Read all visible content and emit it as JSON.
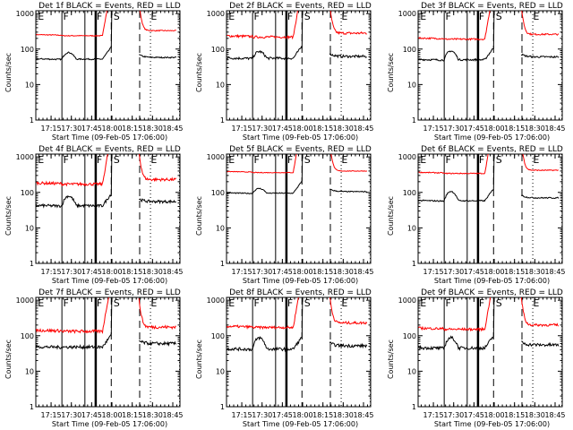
{
  "chart_data": {
    "type": "line",
    "layout": "3x3 grid",
    "shared": {
      "xlabel": "Start Time (09-Feb-05 17:06:00)",
      "ylabel": "Counts/sec",
      "yscale": "log",
      "ylim": [
        1,
        1200
      ],
      "yticks": [
        1,
        10,
        100,
        1000
      ],
      "ytick_labels": [
        "1",
        "10",
        "100",
        "1000"
      ],
      "xlim_minutes": [
        63.7,
        170.3
      ],
      "xticks_minutes": [
        75,
        90,
        105,
        120,
        135,
        150,
        165
      ],
      "xtick_labels": [
        "17:15",
        "17:30",
        "17:45",
        "18:00",
        "18:15",
        "18:30",
        "18:45"
      ],
      "x_unit": "minutes after 16:00",
      "series_colors": {
        "Events": "#000000",
        "LLD": "#ff0000"
      },
      "segment_labels": [
        {
          "text": "E",
          "minute": 64.5
        },
        {
          "text": "F",
          "minute": 83.2
        },
        {
          "text": "F",
          "minute": 108.0
        },
        {
          "text": "S",
          "minute": 120.5
        },
        {
          "text": "E",
          "minute": 148.0
        }
      ],
      "markers": [
        {
          "minute": 83.0,
          "style": "solid"
        },
        {
          "minute": 100.0,
          "style": "solid"
        },
        {
          "minute": 108.0,
          "style": "thick"
        },
        {
          "minute": 119.5,
          "style": "dashed"
        },
        {
          "minute": 140.5,
          "style": "dashed"
        },
        {
          "minute": 148.5,
          "style": "dotted"
        },
        {
          "minute": 170.0,
          "style": "dotted"
        }
      ],
      "gap_minutes": [
        120,
        140
      ]
    },
    "panels": [
      {
        "title": "Det 1f BLACK = Events, RED = LLD",
        "lld": {
          "base": 250,
          "post": 330,
          "noise": 0.03
        },
        "events": {
          "base": 52,
          "bump": 85,
          "post": 58,
          "noise": 0.04
        }
      },
      {
        "title": "Det 2f BLACK = Events, RED = LLD",
        "lld": {
          "base": 230,
          "post": 280,
          "noise": 0.08
        },
        "events": {
          "base": 55,
          "bump": 90,
          "post": 62,
          "noise": 0.08
        }
      },
      {
        "title": "Det 3f BLACK = Events, RED = LLD",
        "lld": {
          "base": 200,
          "post": 260,
          "noise": 0.05
        },
        "events": {
          "base": 50,
          "bump": 95,
          "post": 60,
          "noise": 0.06
        }
      },
      {
        "title": "Det 4f BLACK = Events, RED = LLD",
        "lld": {
          "base": 180,
          "post": 230,
          "noise": 0.09
        },
        "events": {
          "base": 42,
          "bump": 85,
          "post": 55,
          "noise": 0.09
        }
      },
      {
        "title": "Det 5f BLACK = Events, RED = LLD",
        "lld": {
          "base": 380,
          "post": 400,
          "noise": 0.02
        },
        "events": {
          "base": 95,
          "bump": 135,
          "post": 105,
          "noise": 0.03
        }
      },
      {
        "title": "Det 6f BLACK = Events, RED = LLD",
        "lld": {
          "base": 360,
          "post": 420,
          "noise": 0.03
        },
        "events": {
          "base": 58,
          "bump": 115,
          "post": 70,
          "noise": 0.04
        }
      },
      {
        "title": "Det 7f BLACK = Events, RED = LLD",
        "lld": {
          "base": 140,
          "post": 175,
          "noise": 0.1
        },
        "events": {
          "base": 48,
          "bump": 48,
          "post": 60,
          "noise": 0.1
        }
      },
      {
        "title": "Det 8f BLACK = Events, RED = LLD",
        "lld": {
          "base": 180,
          "post": 230,
          "noise": 0.08
        },
        "events": {
          "base": 42,
          "bump": 95,
          "post": 52,
          "noise": 0.1
        }
      },
      {
        "title": "Det 9f BLACK = Events, RED = LLD",
        "lld": {
          "base": 160,
          "post": 200,
          "noise": 0.08
        },
        "events": {
          "base": 45,
          "bump": 95,
          "post": 55,
          "noise": 0.1
        }
      }
    ]
  }
}
